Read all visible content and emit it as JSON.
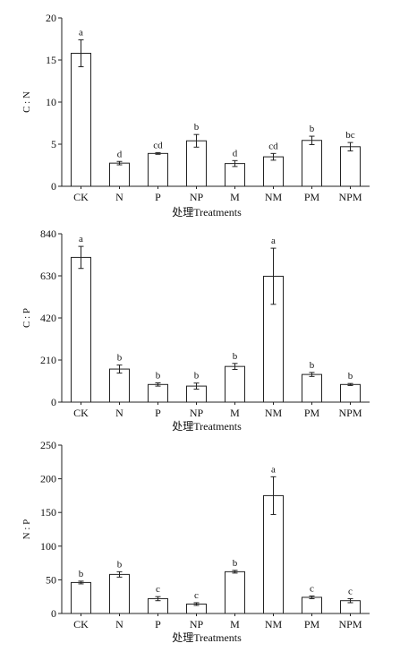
{
  "chart_data": [
    {
      "type": "bar",
      "ylabel": "C : N",
      "xlabel": "处理Treatments",
      "categories": [
        "CK",
        "N",
        "P",
        "NP",
        "M",
        "NM",
        "PM",
        "NPM"
      ],
      "values": [
        15.8,
        2.75,
        3.9,
        5.4,
        2.7,
        3.5,
        5.45,
        4.7
      ],
      "errors": [
        1.6,
        0.2,
        0.1,
        0.75,
        0.35,
        0.4,
        0.5,
        0.5
      ],
      "letters": [
        "a",
        "d",
        "cd",
        "b",
        "d",
        "cd",
        "b",
        "bc"
      ],
      "ylim": [
        0,
        20
      ],
      "yticks": [
        0,
        5,
        10,
        15,
        20
      ],
      "grid": false
    },
    {
      "type": "bar",
      "ylabel": "C : P",
      "xlabel": "处理Treatments",
      "categories": [
        "CK",
        "N",
        "P",
        "NP",
        "M",
        "NM",
        "PM",
        "NPM"
      ],
      "values": [
        722,
        165,
        88,
        80,
        178,
        628,
        138,
        88
      ],
      "errors": [
        55,
        20,
        8,
        15,
        15,
        140,
        10,
        5
      ],
      "letters": [
        "a",
        "b",
        "b",
        "b",
        "b",
        "a",
        "b",
        "b"
      ],
      "ylim": [
        0,
        840
      ],
      "yticks": [
        0,
        210,
        420,
        630,
        840
      ],
      "grid": false
    },
    {
      "type": "bar",
      "ylabel": "N : P",
      "xlabel": "处理Treatments",
      "categories": [
        "CK",
        "N",
        "P",
        "NP",
        "M",
        "NM",
        "PM",
        "NPM"
      ],
      "values": [
        46,
        58,
        22,
        14,
        62,
        175,
        24,
        19
      ],
      "errors": [
        2,
        4,
        3,
        2,
        2,
        28,
        2,
        3
      ],
      "letters": [
        "b",
        "b",
        "c",
        "c",
        "b",
        "a",
        "c",
        "c"
      ],
      "ylim": [
        0,
        250
      ],
      "yticks": [
        0,
        50,
        100,
        150,
        200,
        250
      ],
      "grid": false
    }
  ]
}
